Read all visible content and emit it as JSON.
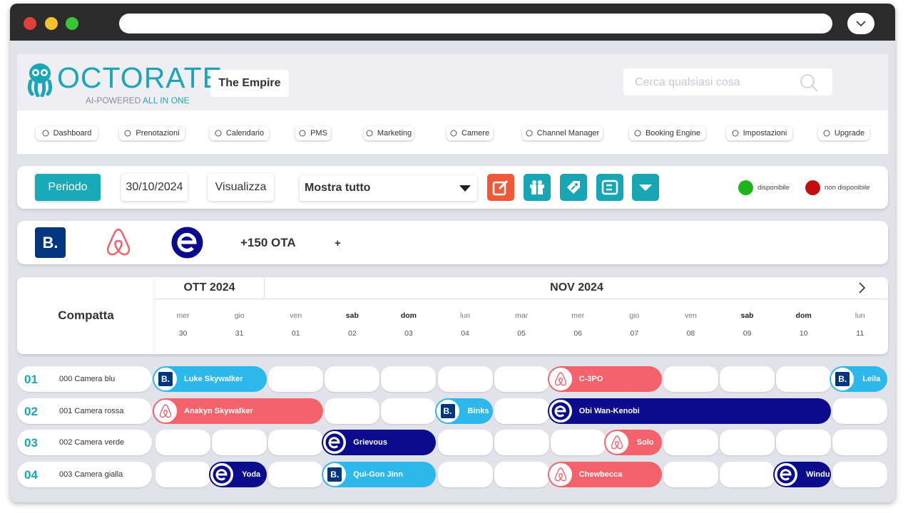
{
  "header": {
    "logo": "OCTORATE",
    "tagline": "AI-POWERED",
    "tagline_accent": "ALL IN ONE",
    "property": "The Empire",
    "search_placeholder": "Cerca qualsiasi cosa"
  },
  "nav": [
    "Dashboard",
    "Prenotazioni",
    "Calendario",
    "PMS",
    "Marketing",
    "Camere",
    "Channel Manager",
    "Booking Engine",
    "Impostazioni",
    "Upgrade"
  ],
  "toolbar": {
    "period_button": "Periodo",
    "date": "30/10/2024",
    "view_button": "Visualizza",
    "filter": "Mostra tutto",
    "legend": [
      {
        "label": "disponibile",
        "color": "#1db51d"
      },
      {
        "label": "non disponibile",
        "color": "#c40d0d"
      }
    ]
  },
  "ota": {
    "booking_logo": "B.",
    "more": "+150 OTA",
    "add": "+"
  },
  "calendar": {
    "mode": "Compatta",
    "months": [
      "OTT 2024",
      "NOV 2024"
    ],
    "days": [
      {
        "weekday": "mer",
        "date": "30"
      },
      {
        "weekday": "gio",
        "date": "31"
      },
      {
        "weekday": "ven",
        "date": "01"
      },
      {
        "weekday": "sab",
        "date": "02"
      },
      {
        "weekday": "dom",
        "date": "03"
      },
      {
        "weekday": "lun",
        "date": "04"
      },
      {
        "weekday": "mar",
        "date": "05"
      },
      {
        "weekday": "mer",
        "date": "06"
      },
      {
        "weekday": "gio",
        "date": "07"
      },
      {
        "weekday": "ven",
        "date": "08"
      },
      {
        "weekday": "sab",
        "date": "09"
      },
      {
        "weekday": "dom",
        "date": "10"
      },
      {
        "weekday": "lun",
        "date": "11"
      }
    ],
    "rooms": [
      {
        "number": "01",
        "name": "000 Camera blu",
        "bookings": [
          "Luke Skywalker",
          "C-3PO",
          "Leila"
        ]
      },
      {
        "number": "02",
        "name": "001 Camera rossa",
        "bookings": [
          "Anakyn Skywalker",
          "Binks",
          "Obi Wan-Kenobi"
        ]
      },
      {
        "number": "03",
        "name": "002 Camera verde",
        "bookings": [
          "Grievous",
          "Solo"
        ]
      },
      {
        "number": "04",
        "name": "003 Camera gialla",
        "bookings": [
          "Yoda",
          "Qui-Gon Jinn",
          "Chewbecca",
          "Windu"
        ]
      }
    ]
  }
}
